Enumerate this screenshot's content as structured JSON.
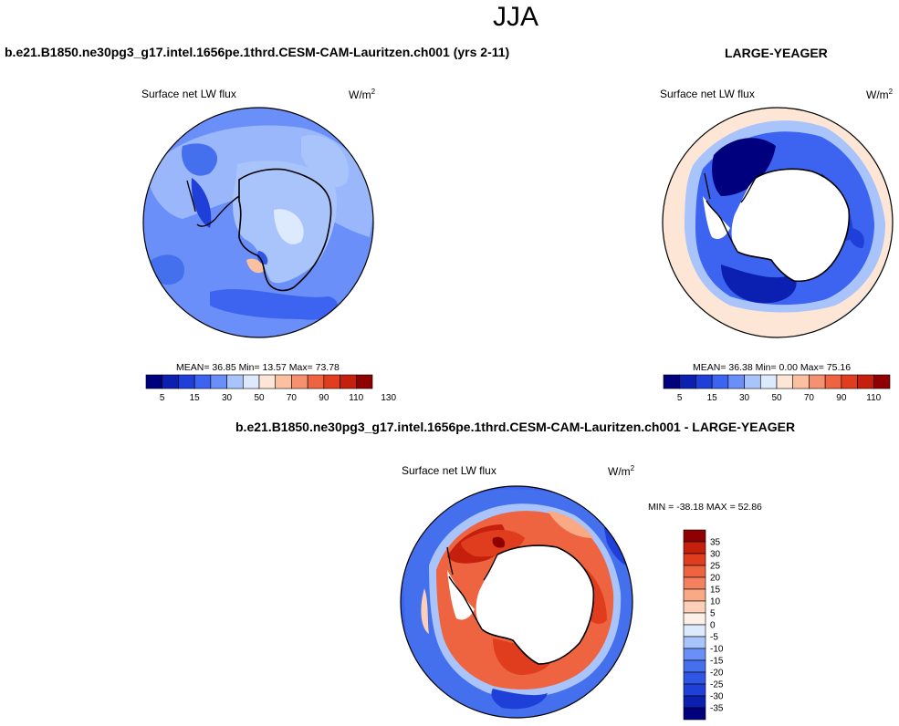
{
  "page": {
    "title": "JJA"
  },
  "panels": {
    "model": {
      "header": "b.e21.B1850.ne30pg3_g17.intel.1656pe.1thrd.CESM-CAM-Lauritzen.ch001 (yrs 2-11)",
      "variable": "Surface net LW flux",
      "units": "W/m",
      "units_sup": "2",
      "stats": "MEAN=  36.85  Min=  13.57  Max=  73.78"
    },
    "obs": {
      "header": "LARGE-YEAGER",
      "variable": "Surface net LW flux",
      "units": "W/m",
      "units_sup": "2",
      "stats": "MEAN=  36.38  Min=   0.00  Max=  75.16"
    },
    "diff": {
      "header": "b.e21.B1850.ne30pg3_g17.intel.1656pe.1thrd.CESM-CAM-Lauritzen.ch001 - LARGE-YEAGER",
      "variable": "Surface net LW flux",
      "units": "W/m",
      "units_sup": "2",
      "minmax": "MIN = -38.18 MAX =  52.86"
    }
  },
  "colorbars": {
    "abs": {
      "colors": [
        "#00007f",
        "#0b1fb0",
        "#1f40d8",
        "#3c64f0",
        "#6b8ff8",
        "#a8c4fb",
        "#dde9fd",
        "#fde6d6",
        "#fbc0a0",
        "#f59070",
        "#ee6440",
        "#e03c1e",
        "#c51f0d",
        "#8f0000"
      ],
      "labels": [
        "5",
        "15",
        "30",
        "50",
        "70",
        "90",
        "110",
        "130"
      ]
    },
    "diff": {
      "colors": [
        "#00007f",
        "#0b1fb0",
        "#1f40d8",
        "#2f55e4",
        "#4470ee",
        "#6b8ff8",
        "#a8c4fb",
        "#dde9fd",
        "#fdf0e6",
        "#fcd0b8",
        "#f9aa85",
        "#f58060",
        "#ee6440",
        "#e03c1e",
        "#c51f0d",
        "#8f0000"
      ],
      "labels": [
        "35",
        "30",
        "25",
        "20",
        "15",
        "10",
        "5",
        "0",
        "-5",
        "-10",
        "-15",
        "-20",
        "-25",
        "-30",
        "-35"
      ]
    }
  }
}
